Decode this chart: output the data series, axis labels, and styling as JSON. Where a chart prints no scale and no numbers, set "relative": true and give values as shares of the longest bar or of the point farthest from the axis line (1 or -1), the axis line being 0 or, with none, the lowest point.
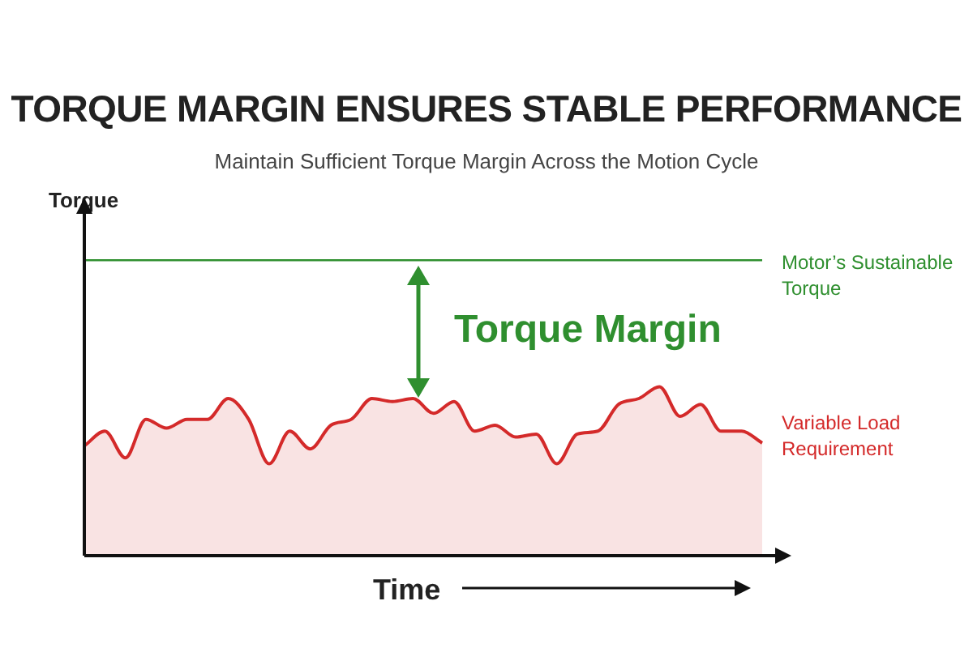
{
  "chart_data": {
    "type": "area",
    "title": "TORQUE MARGIN ENSURES STABLE PERFORMANCE",
    "subtitle": "Maintain Sufficient Torque Margin Across the Motion Cycle",
    "xlabel": "Time",
    "ylabel": "Torque",
    "relative": true,
    "legend": false,
    "marker": "none",
    "annotations": [
      "Torque Margin"
    ],
    "categories": [
      null,
      null,
      null,
      null,
      null,
      null,
      null,
      null,
      null,
      null,
      null,
      null,
      null,
      null,
      null,
      null,
      null,
      null,
      null,
      null,
      null,
      null,
      null,
      null,
      null,
      null,
      null,
      null,
      null,
      null,
      null,
      null,
      null,
      null
    ],
    "series": [
      {
        "name": "Motor’s Sustainable Torque",
        "type": "line",
        "color": "#2f8f2f",
        "values": [
          1,
          1,
          1,
          1,
          1,
          1,
          1,
          1,
          1,
          1,
          1,
          1,
          1,
          1,
          1,
          1,
          1,
          1,
          1,
          1,
          1,
          1,
          1,
          1,
          1,
          1,
          1,
          1,
          1,
          1,
          1,
          1,
          1,
          1
        ]
      },
      {
        "name": "Variable Load Requirement",
        "color": "#d42a2a",
        "values": [
          0.37,
          0.42,
          0.33,
          0.46,
          0.43,
          0.46,
          0.46,
          0.53,
          0.46,
          0.31,
          0.42,
          0.36,
          0.44,
          0.46,
          0.53,
          0.52,
          0.53,
          0.48,
          0.52,
          0.42,
          0.44,
          0.4,
          0.41,
          0.31,
          0.41,
          0.42,
          0.51,
          0.53,
          0.57,
          0.47,
          0.51,
          0.42,
          0.42,
          0.38
        ]
      }
    ]
  }
}
